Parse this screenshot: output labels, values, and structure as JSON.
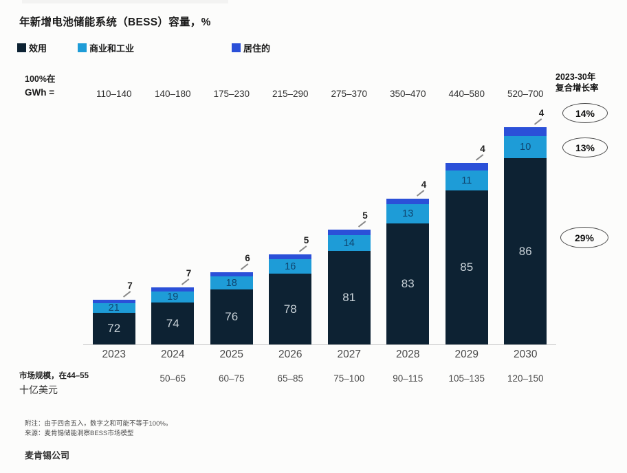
{
  "title": "年新增电池储能系统（BESS）容量，%",
  "legend": [
    {
      "label": "效用",
      "color": "#0d2233"
    },
    {
      "label": "商业和工业",
      "color": "#1e9cd7"
    },
    {
      "label": "居住的",
      "color": "#2b50d8"
    }
  ],
  "gwh_header": {
    "line1": "100%在",
    "line2": "GWh ="
  },
  "cagr": {
    "header_line1": "2023-30年",
    "header_line2": "复合增长率",
    "items": [
      {
        "series": "居住的",
        "value": "14%"
      },
      {
        "series": "商业和工业",
        "value": "13%"
      },
      {
        "series": "效用",
        "value": "29%"
      }
    ]
  },
  "chart_data": {
    "type": "bar",
    "stacked": true,
    "unit": "%",
    "title": "年新增电池储能系统（BESS）容量，%",
    "categories": [
      "2023",
      "2024",
      "2025",
      "2026",
      "2027",
      "2028",
      "2029",
      "2030"
    ],
    "series": [
      {
        "name": "效用",
        "color": "#0d2233",
        "values": [
          72,
          74,
          76,
          78,
          81,
          83,
          85,
          86
        ],
        "cagr_2023_30": "29%"
      },
      {
        "name": "商业和工业",
        "color": "#1e9cd7",
        "values": [
          21,
          19,
          18,
          16,
          14,
          13,
          11,
          10
        ],
        "cagr_2023_30": "13%"
      },
      {
        "name": "居住的",
        "color": "#2b50d8",
        "values": [
          7,
          7,
          6,
          5,
          5,
          4,
          4,
          4
        ],
        "cagr_2023_30": "14%"
      }
    ],
    "gwh_per_100pct": [
      "110–140",
      "140–180",
      "175–230",
      "215–290",
      "275–370",
      "350–470",
      "440–580",
      "520–700"
    ],
    "market_size_billion_usd": [
      "44–55",
      "50–65",
      "60–75",
      "65–85",
      "75–100",
      "90–115",
      "105–135",
      "120–150"
    ],
    "legend_position": "top",
    "grid": false,
    "ylim_note": "bar total height scales with GWh midpoint; segment labels are percentages"
  },
  "market_size": {
    "label_line1": "市场规模，在44–55",
    "label_line2": "十亿美元"
  },
  "notes": {
    "line1": "附注：由于四舍五入，数字之和可能不等于100%。",
    "line2": "来源：麦肯锡储能洞察BESS市场模型"
  },
  "footer": "麦肯锡公司"
}
